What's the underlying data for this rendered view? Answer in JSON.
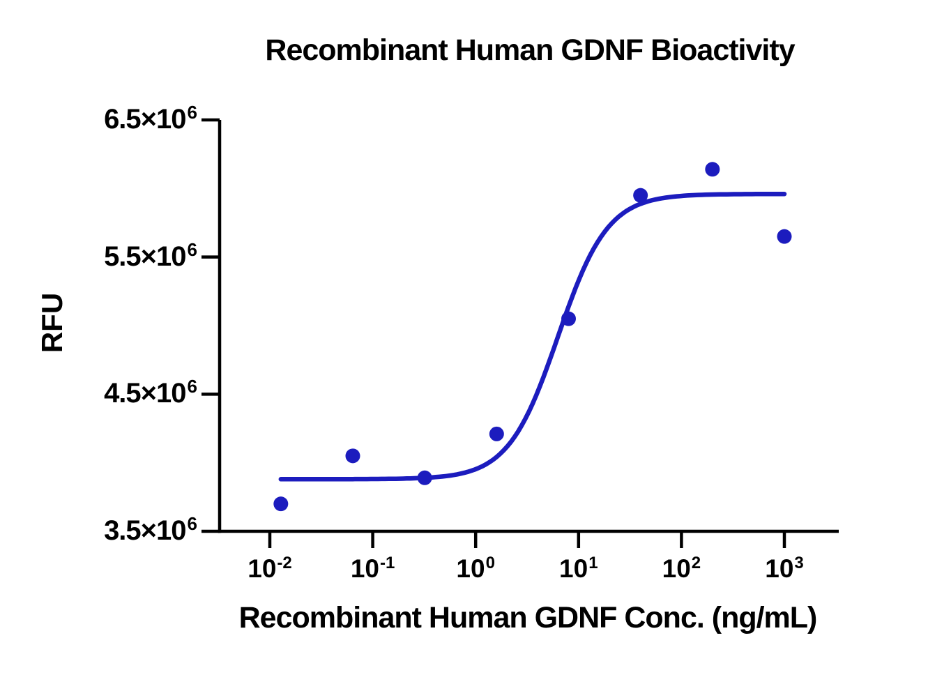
{
  "chart_data": {
    "type": "scatter",
    "title": "Recombinant Human GDNF Bioactivity",
    "xlabel": "Recombinant Human GDNF Conc. (ng/mL)",
    "ylabel": "RFU",
    "x_scale": "log10",
    "grid": false,
    "legend": "none",
    "ylim": [
      3500000,
      6500000
    ],
    "xlim_log": [
      -2.49,
      3.53
    ],
    "x_ticks": [
      {
        "base": "10",
        "exp": "-2",
        "log": -2
      },
      {
        "base": "10",
        "exp": "-1",
        "log": -1
      },
      {
        "base": "10",
        "exp": "0",
        "log": 0
      },
      {
        "base": "10",
        "exp": "1",
        "log": 1
      },
      {
        "base": "10",
        "exp": "2",
        "log": 2
      },
      {
        "base": "10",
        "exp": "3",
        "log": 3
      }
    ],
    "y_ticks": [
      {
        "label": "3.5×10",
        "exp": "6",
        "value": 3500000
      },
      {
        "label": "4.5×10",
        "exp": "6",
        "value": 4500000
      },
      {
        "label": "5.5×10",
        "exp": "6",
        "value": 5500000
      },
      {
        "label": "6.5×10",
        "exp": "6",
        "value": 6500000
      }
    ],
    "points": [
      {
        "x": 0.0128,
        "y": 3700000
      },
      {
        "x": 0.064,
        "y": 4050000
      },
      {
        "x": 0.32,
        "y": 3890000
      },
      {
        "x": 1.6,
        "y": 4210000
      },
      {
        "x": 8,
        "y": 5050000
      },
      {
        "x": 40,
        "y": 5950000
      },
      {
        "x": 200,
        "y": 6140000
      },
      {
        "x": 1000,
        "y": 5650000
      }
    ],
    "fit_curve": {
      "model": "4PL",
      "bottom": 3880000,
      "top": 5960000,
      "log_ec50": 0.8,
      "hill": 1.8,
      "x_start": 0.0128,
      "x_end": 1000
    },
    "colors": {
      "series": "#1C1CBE",
      "axis": "#000000",
      "background": "#FFFFFF"
    }
  }
}
